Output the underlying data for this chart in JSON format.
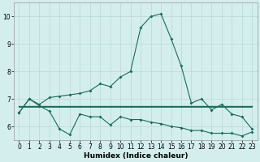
{
  "x": [
    0,
    1,
    2,
    3,
    4,
    5,
    6,
    7,
    8,
    9,
    10,
    11,
    12,
    13,
    14,
    15,
    16,
    17,
    18,
    19,
    20,
    21,
    22,
    23
  ],
  "line_main": [
    6.5,
    7.0,
    6.8,
    7.05,
    7.1,
    7.15,
    7.2,
    7.3,
    7.55,
    7.45,
    7.8,
    8.0,
    9.6,
    10.0,
    10.1,
    9.2,
    8.2,
    6.85,
    7.0,
    6.6,
    6.8,
    6.45,
    6.35,
    5.9
  ],
  "line_low": [
    6.5,
    7.0,
    6.75,
    6.55,
    5.9,
    5.7,
    6.45,
    6.35,
    6.35,
    6.05,
    6.35,
    6.25,
    6.25,
    6.15,
    6.1,
    6.0,
    5.95,
    5.85,
    5.85,
    5.75,
    5.75,
    5.75,
    5.65,
    5.8
  ],
  "line_flat1": [
    6.75,
    6.75,
    6.75,
    6.75,
    6.75,
    6.75,
    6.75,
    6.75,
    6.75,
    6.75,
    6.75,
    6.75,
    6.75,
    6.75,
    6.75,
    6.75,
    6.75,
    6.75,
    6.75,
    6.75,
    6.75,
    6.75,
    6.75,
    6.75
  ],
  "line_flat2": [
    6.7,
    6.7,
    6.7,
    6.7,
    6.7,
    6.7,
    6.7,
    6.7,
    6.7,
    6.7,
    6.7,
    6.7,
    6.7,
    6.7,
    6.7,
    6.7,
    6.7,
    6.7,
    6.7,
    6.7,
    6.7,
    6.7,
    6.7,
    6.7
  ],
  "xlabel": "Humidex (Indice chaleur)",
  "xlim": [
    -0.5,
    23.5
  ],
  "ylim": [
    5.5,
    10.5
  ],
  "yticks": [
    6,
    7,
    8,
    9,
    10
  ],
  "xticks": [
    0,
    1,
    2,
    3,
    4,
    5,
    6,
    7,
    8,
    9,
    10,
    11,
    12,
    13,
    14,
    15,
    16,
    17,
    18,
    19,
    20,
    21,
    22,
    23
  ],
  "bg_color": "#d4eeee",
  "grid_color": "#b8d8d8",
  "line_color": "#1a6b5a",
  "line_width": 0.8,
  "marker_size": 2.0,
  "xlabel_fontsize": 6.5,
  "tick_fontsize": 5.5
}
